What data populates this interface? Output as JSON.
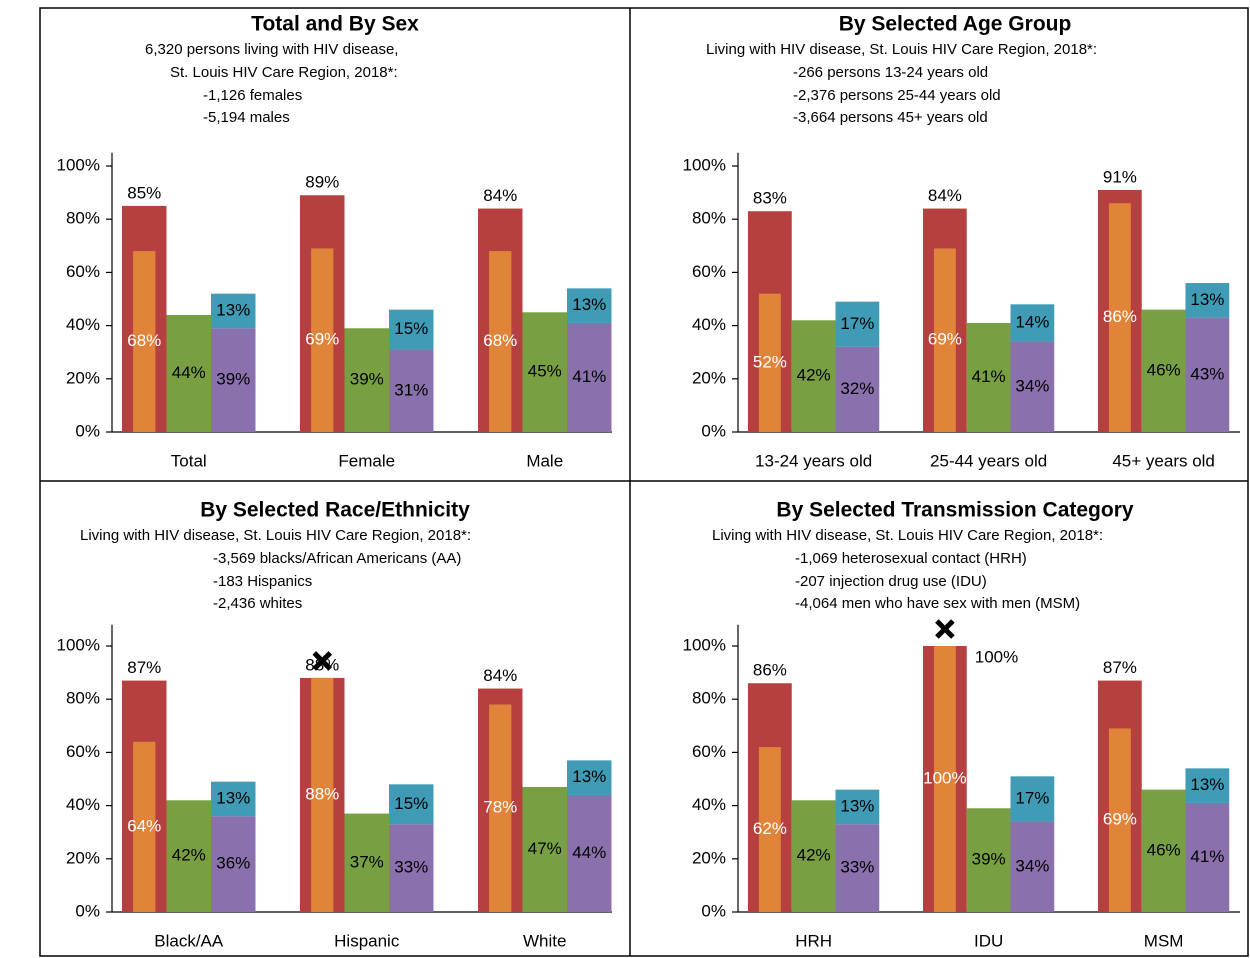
{
  "chart_data": [
    {
      "type": "bar",
      "title": "Total and By Sex",
      "subtitle": [
        "6,320 persons living with HIV disease,",
        "St. Louis HIV Care Region, 2018*:",
        "-1,126 females",
        "-5,194 males"
      ],
      "categories": [
        "Total",
        "Female",
        "Male"
      ],
      "flagged": [
        false,
        false,
        false
      ],
      "series": [
        {
          "color": "#b5403f",
          "values": [
            85,
            89,
            84
          ],
          "value_labels": [
            "85%",
            "89%",
            "84%"
          ]
        },
        {
          "color": "#e0843a",
          "values": [
            68,
            69,
            68
          ],
          "value_labels": [
            "68%",
            "69%",
            "68%"
          ]
        },
        {
          "color": "#78a043",
          "values": [
            44,
            39,
            45
          ],
          "value_labels": [
            "44%",
            "39%",
            "45%"
          ]
        },
        {
          "color": "#8a70ad",
          "values": [
            39,
            31,
            41
          ],
          "value_labels": [
            "39%",
            "31%",
            "41%"
          ]
        },
        {
          "color": "#3f9bb6",
          "stack_on": 3,
          "values": [
            13,
            15,
            13
          ],
          "value_labels": [
            "13%",
            "15%",
            "13%"
          ]
        }
      ],
      "ylim": [
        0,
        105
      ],
      "yticks": [
        {
          "value": 0,
          "label": "0%"
        },
        {
          "value": 20,
          "label": "20%"
        },
        {
          "value": 40,
          "label": "40%"
        },
        {
          "value": 60,
          "label": "60%"
        },
        {
          "value": 80,
          "label": "80%"
        },
        {
          "value": 100,
          "label": "100%"
        }
      ]
    },
    {
      "type": "bar",
      "title": "By Selected Age Group",
      "subtitle": [
        "Living with HIV disease, St. Louis HIV Care Region, 2018*:",
        "-266 persons 13-24 years old",
        "-2,376 persons 25-44 years old",
        "-3,664 persons 45+ years old"
      ],
      "categories": [
        "13-24 years old",
        "25-44 years old",
        "45+ years old"
      ],
      "flagged": [
        false,
        false,
        false
      ],
      "series": [
        {
          "color": "#b5403f",
          "values": [
            83,
            84,
            91
          ],
          "value_labels": [
            "83%",
            "84%",
            "91%"
          ]
        },
        {
          "color": "#e0843a",
          "values": [
            52,
            69,
            86
          ],
          "value_labels": [
            "52%",
            "69%",
            "86%"
          ]
        },
        {
          "color": "#78a043",
          "values": [
            42,
            41,
            46
          ],
          "value_labels": [
            "42%",
            "41%",
            "46%"
          ]
        },
        {
          "color": "#8a70ad",
          "values": [
            32,
            34,
            43
          ],
          "value_labels": [
            "32%",
            "34%",
            "43%"
          ]
        },
        {
          "color": "#3f9bb6",
          "stack_on": 3,
          "values": [
            17,
            14,
            13
          ],
          "value_labels": [
            "17%",
            "14%",
            "13%"
          ]
        }
      ],
      "ylim": [
        0,
        105
      ],
      "yticks": [
        {
          "value": 0,
          "label": "0%"
        },
        {
          "value": 20,
          "label": "20%"
        },
        {
          "value": 40,
          "label": "40%"
        },
        {
          "value": 60,
          "label": "60%"
        },
        {
          "value": 80,
          "label": "80%"
        },
        {
          "value": 100,
          "label": "100%"
        }
      ]
    },
    {
      "type": "bar",
      "title": "By Selected Race/Ethnicity",
      "subtitle": [
        "Living with HIV disease, St. Louis HIV Care Region, 2018*:",
        "-3,569 blacks/African Americans (AA)",
        "-183 Hispanics",
        "-2,436 whites"
      ],
      "categories": [
        "Black/AA",
        "Hispanic",
        "White"
      ],
      "flagged": [
        false,
        true,
        false
      ],
      "series": [
        {
          "color": "#b5403f",
          "values": [
            87,
            88,
            84
          ],
          "value_labels": [
            "87%",
            "88%",
            "84%"
          ]
        },
        {
          "color": "#e0843a",
          "values": [
            64,
            88,
            78
          ],
          "value_labels": [
            "64%",
            "88%",
            "78%"
          ]
        },
        {
          "color": "#78a043",
          "values": [
            42,
            37,
            47
          ],
          "value_labels": [
            "42%",
            "37%",
            "47%"
          ]
        },
        {
          "color": "#8a70ad",
          "values": [
            36,
            33,
            44
          ],
          "value_labels": [
            "36%",
            "33%",
            "44%"
          ]
        },
        {
          "color": "#3f9bb6",
          "stack_on": 3,
          "values": [
            13,
            15,
            13
          ],
          "value_labels": [
            "13%",
            "15%",
            "13%"
          ]
        }
      ],
      "ylim": [
        0,
        108
      ],
      "yticks": [
        {
          "value": 0,
          "label": "0%"
        },
        {
          "value": 20,
          "label": "20%"
        },
        {
          "value": 40,
          "label": "40%"
        },
        {
          "value": 60,
          "label": "60%"
        },
        {
          "value": 80,
          "label": "80%"
        },
        {
          "value": 100,
          "label": "100%"
        }
      ]
    },
    {
      "type": "bar",
      "title": "By Selected Transmission Category",
      "subtitle": [
        "Living with HIV disease, St. Louis HIV Care Region, 2018*:",
        "-1,069 heterosexual contact (HRH)",
        "-207 injection drug use (IDU)",
        "-4,064 men who have sex with men (MSM)"
      ],
      "categories": [
        "HRH",
        "IDU",
        "MSM"
      ],
      "flagged": [
        false,
        true,
        false
      ],
      "series": [
        {
          "color": "#b5403f",
          "values": [
            86,
            100,
            87
          ],
          "value_labels": [
            "86%",
            "100%",
            "87%"
          ]
        },
        {
          "color": "#e0843a",
          "values": [
            62,
            100,
            69
          ],
          "value_labels": [
            "62%",
            "100%",
            "69%"
          ]
        },
        {
          "color": "#78a043",
          "values": [
            42,
            39,
            46
          ],
          "value_labels": [
            "42%",
            "39%",
            "46%"
          ]
        },
        {
          "color": "#8a70ad",
          "values": [
            33,
            34,
            41
          ],
          "value_labels": [
            "33%",
            "34%",
            "41%"
          ]
        },
        {
          "color": "#3f9bb6",
          "stack_on": 3,
          "values": [
            13,
            17,
            13
          ],
          "value_labels": [
            "13%",
            "17%",
            "13%"
          ]
        }
      ],
      "ylim": [
        0,
        108
      ],
      "yticks": [
        {
          "value": 0,
          "label": "0%"
        },
        {
          "value": 20,
          "label": "20%"
        },
        {
          "value": 40,
          "label": "40%"
        },
        {
          "value": 60,
          "label": "60%"
        },
        {
          "value": 80,
          "label": "80%"
        },
        {
          "value": 100,
          "label": "100%"
        }
      ]
    }
  ]
}
